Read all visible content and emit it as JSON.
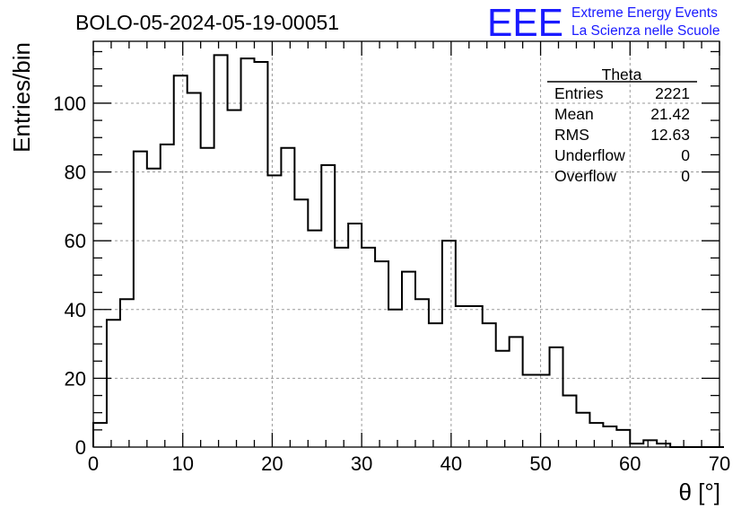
{
  "header": {
    "run_title": "BOLO-05-2024-05-19-00051",
    "logo_text": "EEE",
    "logo_line1": "Extreme Energy Events",
    "logo_line2": "La Scienza nelle Scuole",
    "logo_color": "#1a1aff"
  },
  "stats": {
    "title": "Theta",
    "rows": [
      {
        "label": "Entries",
        "value": "2221"
      },
      {
        "label": "Mean",
        "value": "21.42"
      },
      {
        "label": "RMS",
        "value": "12.63"
      },
      {
        "label": "Underflow",
        "value": "0"
      },
      {
        "label": "Overflow",
        "value": "0"
      }
    ]
  },
  "chart_data": {
    "type": "histogram",
    "title": "BOLO-05-2024-05-19-00051",
    "xlabel": "θ [°]",
    "ylabel": "Entries/bin",
    "xlim": [
      0,
      70
    ],
    "ylim": [
      0,
      118
    ],
    "bin_width": 1.5,
    "x_ticks": [
      0,
      10,
      20,
      30,
      40,
      50,
      60,
      70
    ],
    "y_ticks": [
      0,
      20,
      40,
      60,
      80,
      100
    ],
    "grid": true,
    "values": [
      7,
      37,
      43,
      86,
      81,
      88,
      108,
      103,
      87,
      114,
      98,
      113,
      112,
      79,
      87,
      72,
      63,
      82,
      58,
      65,
      58,
      54,
      40,
      51,
      43,
      36,
      60,
      41,
      41,
      36,
      28,
      32,
      21,
      21,
      29,
      15,
      10,
      7,
      6,
      5,
      1,
      2,
      1,
      0,
      0,
      0,
      0
    ]
  }
}
